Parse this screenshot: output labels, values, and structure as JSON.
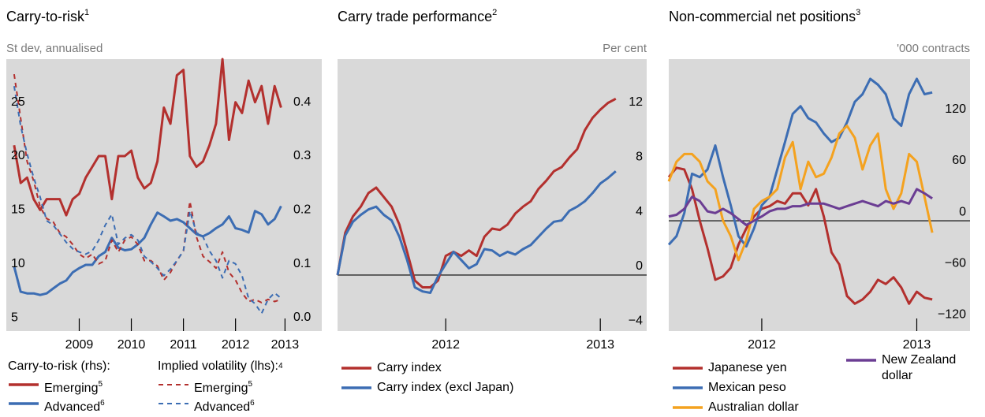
{
  "chart_data": [
    {
      "type": "line",
      "title": "Carry-to-risk",
      "title_note": "1",
      "y_label": "St dev, annualised",
      "x": [
        2008.25,
        2008.375,
        2008.5,
        2008.625,
        2008.75,
        2008.875,
        2009,
        2009.125,
        2009.25,
        2009.375,
        2009.5,
        2009.625,
        2009.75,
        2009.875,
        2010,
        2010.125,
        2010.25,
        2010.375,
        2010.5,
        2010.625,
        2010.75,
        2010.875,
        2011,
        2011.125,
        2011.25,
        2011.375,
        2011.5,
        2011.625,
        2011.75,
        2011.875,
        2012,
        2012.125,
        2012.25,
        2012.375,
        2012.5,
        2012.625,
        2012.75,
        2012.875,
        2013,
        2013.125,
        2013.25,
        2013.375
      ],
      "xlim": [
        2008.1,
        2013.55
      ],
      "xticks": [
        {
          "value": 2009.5,
          "label": "2009"
        },
        {
          "value": 2010.5,
          "label": "2010"
        },
        {
          "value": 2011.5,
          "label": "2011"
        },
        {
          "value": 2012.5,
          "label": "2012"
        },
        {
          "value": 2013.45,
          "label": "2013"
        }
      ],
      "ylim": [
        3.76,
        29
      ],
      "yticks": [
        5,
        10,
        15,
        20,
        25
      ],
      "y2lim": [
        -0.025,
        0.48
      ],
      "y2ticks": [
        {
          "value": 0,
          "label": "0.0"
        },
        0.1,
        0.2,
        0.3,
        0.4
      ],
      "legend_groups": [
        {
          "title": "Carry-to-risk (rhs):"
        },
        {
          "title": "Implied volatility (lhs):",
          "note": "4"
        }
      ],
      "series": [
        {
          "name": "Emerging",
          "name_note": "5",
          "group": 0,
          "axis": "y2",
          "color": "#b3302e",
          "dash": false,
          "values": [
            0.32,
            0.25,
            0.26,
            0.22,
            0.2,
            0.22,
            0.22,
            0.22,
            0.19,
            0.22,
            0.23,
            0.26,
            0.28,
            0.3,
            0.3,
            0.22,
            0.3,
            0.3,
            0.31,
            0.26,
            0.24,
            0.25,
            0.29,
            0.39,
            0.36,
            0.45,
            0.46,
            0.3,
            0.28,
            0.29,
            0.32,
            0.36,
            0.48,
            0.33,
            0.4,
            0.38,
            0.44,
            0.4,
            0.43,
            0.36,
            0.43,
            0.39
          ]
        },
        {
          "name": "Advanced",
          "name_note": "6",
          "group": 0,
          "axis": "y2",
          "color": "#3c6db3",
          "dash": false,
          "values": [
            0.095,
            0.048,
            0.045,
            0.045,
            0.042,
            0.045,
            0.054,
            0.063,
            0.069,
            0.084,
            0.092,
            0.098,
            0.098,
            0.114,
            0.122,
            0.148,
            0.13,
            0.125,
            0.127,
            0.136,
            0.148,
            0.173,
            0.195,
            0.188,
            0.18,
            0.183,
            0.177,
            0.166,
            0.155,
            0.151,
            0.157,
            0.166,
            0.173,
            0.188,
            0.166,
            0.163,
            0.158,
            0.198,
            0.192,
            0.173,
            0.183,
            0.207
          ]
        },
        {
          "name": "Emerging",
          "name_note": "5",
          "group": 1,
          "axis": "y",
          "color": "#b3302e",
          "dash": true,
          "values": [
            27.6,
            23.5,
            19.5,
            17.7,
            15.3,
            14.2,
            13.9,
            12.9,
            12.5,
            11.8,
            10.9,
            10.5,
            10.9,
            10.0,
            10.3,
            12.2,
            11.1,
            12.2,
            12.5,
            11.8,
            10.3,
            10.3,
            9.8,
            8.5,
            9.2,
            10.3,
            11.2,
            15.8,
            12.5,
            10.7,
            10.2,
            9.6,
            11.1,
            9.2,
            8.5,
            7.3,
            6.5,
            6.7,
            6.4,
            6.7,
            6.5,
            6.7
          ]
        },
        {
          "name": "Advanced",
          "name_note": "6",
          "group": 1,
          "axis": "y",
          "color": "#3c6db3",
          "dash": true,
          "values": [
            26.5,
            22.8,
            20.2,
            18.0,
            16.2,
            14.0,
            13.6,
            12.8,
            12.0,
            11.4,
            11.1,
            10.9,
            11.2,
            12.2,
            13.6,
            14.6,
            11.8,
            12.4,
            12.7,
            12.2,
            10.7,
            10.2,
            9.6,
            8.9,
            9.5,
            10.3,
            11.2,
            14.9,
            12.9,
            12.5,
            11.2,
            10.3,
            8.7,
            10.3,
            10.0,
            8.9,
            6.8,
            6.3,
            5.4,
            6.7,
            7.3,
            6.8
          ]
        }
      ]
    },
    {
      "type": "line",
      "title": "Carry trade performance",
      "title_note": "2",
      "y_label": "Per cent",
      "x": [
        2011.3,
        2011.35,
        2011.4,
        2011.45,
        2011.5,
        2011.55,
        2011.6,
        2011.65,
        2011.7,
        2011.75,
        2011.8,
        2011.85,
        2011.9,
        2011.95,
        2012,
        2012.05,
        2012.1,
        2012.15,
        2012.2,
        2012.25,
        2012.3,
        2012.35,
        2012.4,
        2012.45,
        2012.5,
        2012.55,
        2012.6,
        2012.65,
        2012.7,
        2012.75,
        2012.8,
        2012.85,
        2012.9,
        2012.95,
        2013,
        2013.05,
        2013.1
      ],
      "xlim": [
        2011.3,
        2013.3
      ],
      "xticks": [
        2012,
        2013
      ],
      "ylim": [
        -4.1,
        15.8
      ],
      "yticks": [
        {
          "value": -4,
          "label": "−4"
        },
        0,
        4,
        8,
        12
      ],
      "zero_line": true,
      "series": [
        {
          "name": "Carry index",
          "color": "#b3302e",
          "values": [
            0.0,
            3.1,
            4.3,
            5.0,
            6.0,
            6.4,
            5.7,
            5.0,
            3.7,
            1.7,
            -0.4,
            -0.9,
            -0.9,
            -0.4,
            1.4,
            1.7,
            1.4,
            1.8,
            1.4,
            2.8,
            3.4,
            3.3,
            3.7,
            4.5,
            5.0,
            5.4,
            6.3,
            6.9,
            7.6,
            7.9,
            8.6,
            9.2,
            10.6,
            11.5,
            12.1,
            12.6,
            12.9
          ]
        },
        {
          "name": "Carry index (excl Japan)",
          "color": "#3c6db3",
          "values": [
            0.0,
            2.9,
            3.9,
            4.4,
            4.8,
            5.0,
            4.4,
            4.0,
            2.8,
            1.1,
            -0.9,
            -1.2,
            -1.3,
            -0.1,
            0.8,
            1.7,
            1.1,
            0.5,
            0.8,
            1.9,
            1.8,
            1.4,
            1.7,
            1.5,
            1.9,
            2.2,
            2.8,
            3.4,
            3.9,
            4.0,
            4.7,
            5.0,
            5.4,
            6.0,
            6.7,
            7.1,
            7.6
          ]
        }
      ]
    },
    {
      "type": "line",
      "title": "Non-commercial net positions",
      "title_note": "3",
      "y_label": "'000 contracts",
      "x": [
        2011.4,
        2011.45,
        2011.5,
        2011.55,
        2011.6,
        2011.65,
        2011.7,
        2011.75,
        2011.8,
        2011.85,
        2011.9,
        2011.95,
        2012,
        2012.05,
        2012.1,
        2012.15,
        2012.2,
        2012.25,
        2012.3,
        2012.35,
        2012.4,
        2012.45,
        2012.5,
        2012.55,
        2012.6,
        2012.65,
        2012.7,
        2012.75,
        2012.8,
        2012.85,
        2012.9,
        2012.95,
        2013,
        2013.05,
        2013.1
      ],
      "xlim": [
        2011.4,
        2013.14
      ],
      "xticks": [
        2012,
        2013
      ],
      "ylim": [
        -129,
        189
      ],
      "yticks": [
        {
          "value": -120,
          "label": "−120"
        },
        {
          "value": -60,
          "label": "−60"
        },
        0,
        60,
        120
      ],
      "zero_line": true,
      "series": [
        {
          "name": "Japanese yen",
          "color": "#b3302e",
          "values": [
            51,
            62,
            60,
            37,
            0,
            -32,
            -69,
            -65,
            -55,
            -28,
            -9,
            5,
            14,
            17,
            23,
            20,
            32,
            32,
            18,
            37,
            5,
            -37,
            -51,
            -88,
            -97,
            -92,
            -83,
            -69,
            -74,
            -66,
            -78,
            -97,
            -83,
            -90,
            -92
          ]
        },
        {
          "name": "Mexican peso",
          "color": "#3c6db3",
          "values": [
            -28,
            -18,
            9,
            55,
            51,
            60,
            88,
            51,
            18,
            -18,
            -30,
            -9,
            18,
            28,
            60,
            92,
            125,
            134,
            120,
            115,
            102,
            92,
            97,
            115,
            139,
            148,
            166,
            159,
            148,
            120,
            111,
            148,
            166,
            148,
            150
          ]
        },
        {
          "name": "Australian dollar",
          "color": "#f4a21f",
          "values": [
            46,
            69,
            78,
            78,
            69,
            46,
            37,
            0,
            -18,
            -46,
            -23,
            14,
            23,
            28,
            37,
            74,
            92,
            37,
            69,
            51,
            55,
            74,
            102,
            111,
            97,
            60,
            88,
            102,
            37,
            14,
            32,
            78,
            69,
            28,
            -14
          ]
        },
        {
          "name": "New Zealand dollar",
          "color": "#6b3d93",
          "values": [
            5,
            7,
            14,
            28,
            23,
            11,
            9,
            14,
            9,
            2,
            -5,
            0,
            5,
            11,
            14,
            14,
            17,
            17,
            20,
            20,
            20,
            17,
            14,
            17,
            20,
            23,
            20,
            17,
            23,
            20,
            23,
            20,
            37,
            32,
            26
          ]
        }
      ]
    }
  ]
}
